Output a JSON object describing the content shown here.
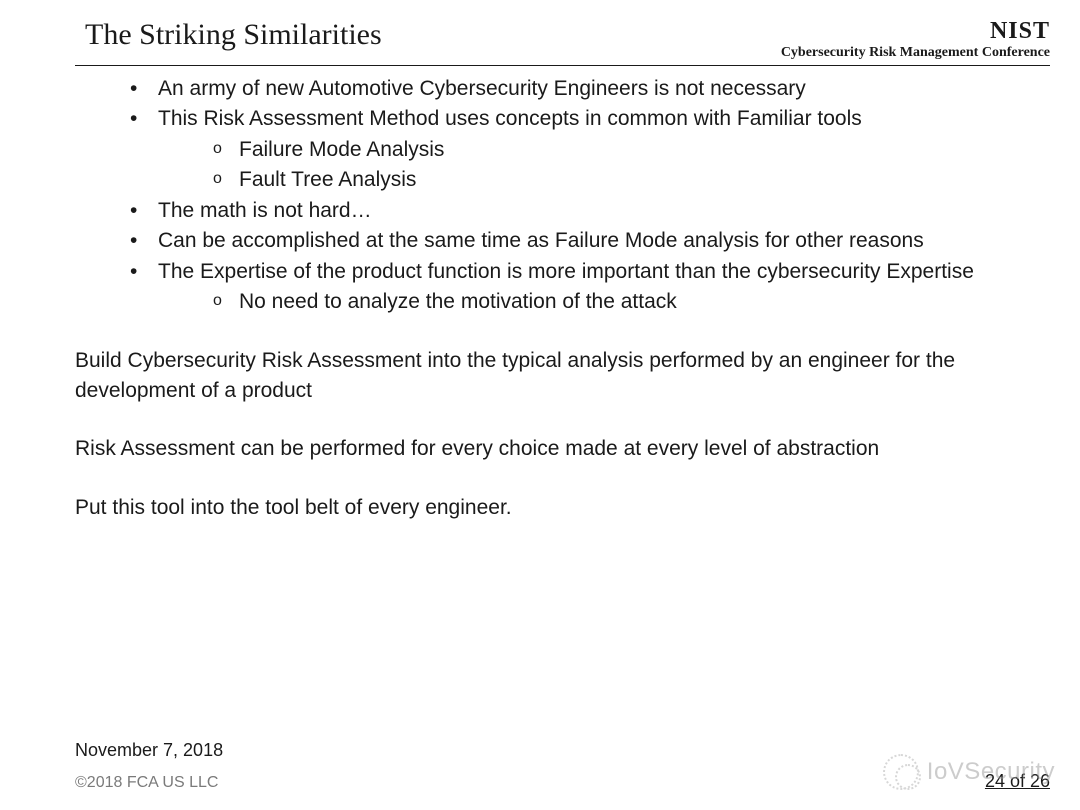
{
  "header": {
    "title": "The Striking Similarities",
    "org": "NIST",
    "conference": "Cybersecurity Risk Management Conference"
  },
  "bullets": {
    "b1": "An army of new Automotive Cybersecurity Engineers is not necessary",
    "b2": "This Risk Assessment Method uses concepts in common with Familiar tools",
    "b2s1": "Failure Mode Analysis",
    "b2s2": "Fault Tree Analysis",
    "b3": "The math is not hard…",
    "b4": "Can be accomplished at the same time as Failure Mode analysis for other reasons",
    "b5": "The Expertise of the product function is more important than the cybersecurity Expertise",
    "b5s1": "No need to analyze the motivation of the attack"
  },
  "paragraphs": {
    "p1": "Build Cybersecurity Risk Assessment into the typical analysis performed by an engineer for the development of a product",
    "p2": "Risk Assessment can be performed for every choice made at every level of abstraction",
    "p3": "Put this tool into the tool belt of every engineer."
  },
  "footer": {
    "date": "November 7, 2018",
    "copyright": "©2018 FCA US LLC",
    "page": "24 of 26"
  },
  "watermark": {
    "text": "IoVSecurity"
  },
  "style": {
    "bg": "#ffffff",
    "text_color": "#1a1a1a",
    "muted_color": "#7a7a7a",
    "title_fontsize": 30,
    "body_fontsize": 21,
    "footer_fontsize": 18,
    "title_font": "serif",
    "body_font": "sans-serif"
  }
}
